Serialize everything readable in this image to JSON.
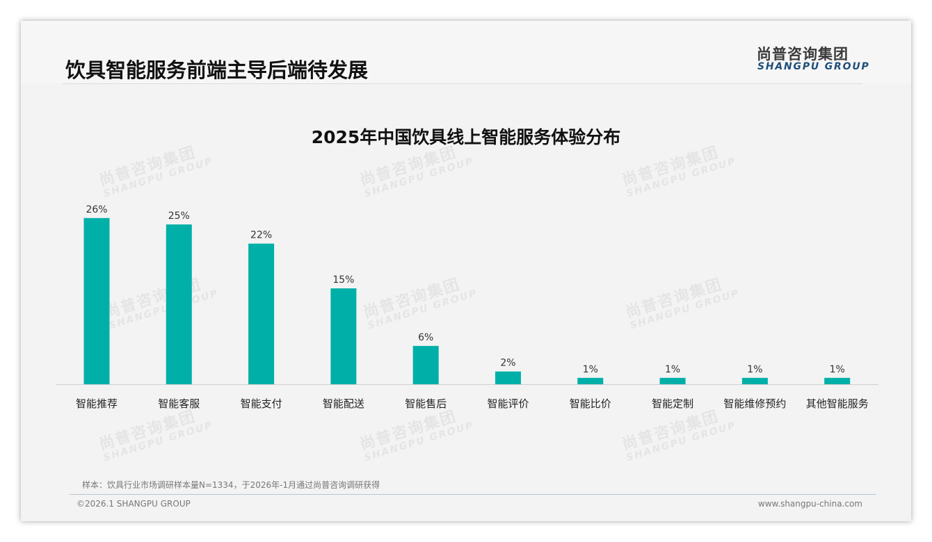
{
  "header": {
    "title": "饮具智能服务前端主导后端待发展",
    "logo_cn": "尚普咨询集团",
    "logo_en": "SHANGPU GROUP"
  },
  "watermark": {
    "cn": "尚普咨询集团",
    "en": "SHANGPU GROUP"
  },
  "chart_data": {
    "type": "bar",
    "title": "2025年中国饮具线上智能服务体验分布",
    "categories": [
      "智能推荐",
      "智能客服",
      "智能支付",
      "智能配送",
      "智能售后",
      "智能评价",
      "智能比价",
      "智能定制",
      "智能维修预约",
      "其他智能服务"
    ],
    "values": [
      26,
      25,
      22,
      15,
      6,
      2,
      1,
      1,
      1,
      1
    ],
    "labels": [
      "26%",
      "25%",
      "22%",
      "15%",
      "6%",
      "2%",
      "1%",
      "1%",
      "1%",
      "1%"
    ],
    "unit": "%",
    "xlabel": "",
    "ylabel": "",
    "ylim": [
      0,
      30
    ],
    "grid": false,
    "color": "#00b0a8"
  },
  "footer": {
    "note": "样本：饮具行业市场调研样本量N=1334，于2026年-1月通过尚普咨询调研获得",
    "copyright": "©2026.1 SHANGPU GROUP",
    "url": "www.shangpu-china.com"
  }
}
